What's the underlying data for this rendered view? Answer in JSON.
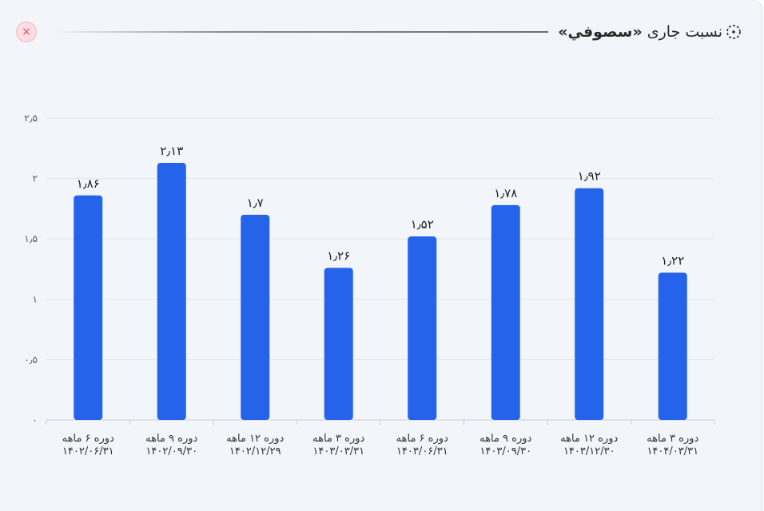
{
  "header": {
    "title": "نسبت جاری",
    "company": "«سصوفي»",
    "close_symbol": "×",
    "icon": "dotted-circle-icon"
  },
  "colors": {
    "bar": "#2563eb",
    "background": "#f2f5fa",
    "close_bg": "#fbdde2",
    "close_fg": "#e0485f"
  },
  "chart_data": {
    "type": "bar",
    "title": "",
    "xlabel": "",
    "ylabel": "",
    "ylim": [
      0,
      2.5
    ],
    "yticks": [
      0,
      0.5,
      1,
      1.5,
      2,
      2.5
    ],
    "ytick_labels": [
      "۰",
      "۰٫۵",
      "۱",
      "۱٫۵",
      "۲",
      "۲٫۵"
    ],
    "grid": true,
    "legend": "none",
    "categories": [
      [
        "دوره ۶ ماهه",
        "۱۴۰۲/۰۶/۳۱"
      ],
      [
        "دوره ۹ ماهه",
        "۱۴۰۲/۰۹/۳۰"
      ],
      [
        "دوره ۱۲ ماهه",
        "۱۴۰۲/۱۲/۲۹"
      ],
      [
        "دوره ۳ ماهه",
        "۱۴۰۳/۰۳/۳۱"
      ],
      [
        "دوره ۶ ماهه",
        "۱۴۰۳/۰۶/۳۱"
      ],
      [
        "دوره ۹ ماهه",
        "۱۴۰۳/۰۹/۳۰"
      ],
      [
        "دوره ۱۲ ماهه",
        "۱۴۰۳/۱۲/۳۰"
      ],
      [
        "دوره ۳ ماهه",
        "۱۴۰۴/۰۳/۳۱"
      ]
    ],
    "values": [
      1.86,
      2.13,
      1.7,
      1.26,
      1.52,
      1.78,
      1.92,
      1.22
    ],
    "value_labels": [
      "۱٫۸۶",
      "۲٫۱۳",
      "۱٫۷",
      "۱٫۲۶",
      "۱٫۵۲",
      "۱٫۷۸",
      "۱٫۹۲",
      "۱٫۲۲"
    ]
  }
}
